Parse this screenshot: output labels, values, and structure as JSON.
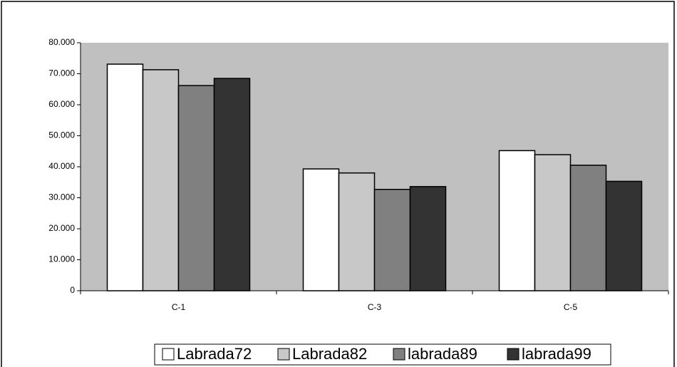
{
  "chart_data": {
    "type": "bar",
    "categories": [
      "C-1",
      "C-3",
      "C-5"
    ],
    "series": [
      {
        "name": "Labrada72",
        "color": "#ffffff",
        "values": [
          73100,
          39300,
          45200
        ]
      },
      {
        "name": "Labrada82",
        "color": "#c8c8c8",
        "values": [
          71300,
          38000,
          43900
        ]
      },
      {
        "name": "labrada89",
        "color": "#808080",
        "values": [
          66200,
          32700,
          40500
        ]
      },
      {
        "name": "labrada99",
        "color": "#333333",
        "values": [
          68500,
          33600,
          35300
        ]
      }
    ],
    "ylim": [
      0,
      80000
    ],
    "yticks": [
      0,
      {
        "value": 10000,
        "label": "10.000"
      },
      {
        "value": 20000,
        "label": "20.000"
      },
      {
        "value": 30000,
        "label": "30.000"
      },
      {
        "value": 40000,
        "label": "40.000"
      },
      {
        "value": 50000,
        "label": "50.000"
      },
      {
        "value": 60000,
        "label": "60.000"
      },
      {
        "value": 70000,
        "label": "70.000"
      },
      {
        "value": 80000,
        "label": "80.000"
      }
    ],
    "background": "#c0c0c0"
  }
}
